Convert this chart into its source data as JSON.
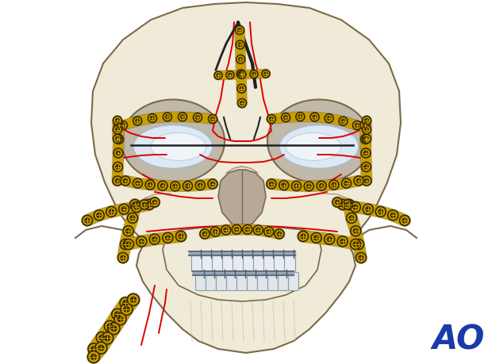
{
  "bg_color": "#ffffff",
  "skull_fill": "#f0ead8",
  "skull_fill2": "#e8e0c8",
  "skull_outline": "#7a6a4a",
  "orbit_fill": "#c8c0b0",
  "eye_white": "#dce8f0",
  "eye_outline": "#9aabb8",
  "nasal_fill": "#b8a898",
  "nasal_dark": "#908070",
  "fracture_color": "#dd0000",
  "plate_gold": "#c8a000",
  "plate_dark": "#3a2800",
  "plate_mid": "#8a6800",
  "wire_color": "#555555",
  "wire_dark": "#222222",
  "tooth_white": "#e0e4e8",
  "tooth_outline": "#8899aa",
  "tooth_metal": "#9aabba",
  "ao_color": "#1a3aaa",
  "fig_width": 6.2,
  "fig_height": 4.59,
  "dpi": 100
}
